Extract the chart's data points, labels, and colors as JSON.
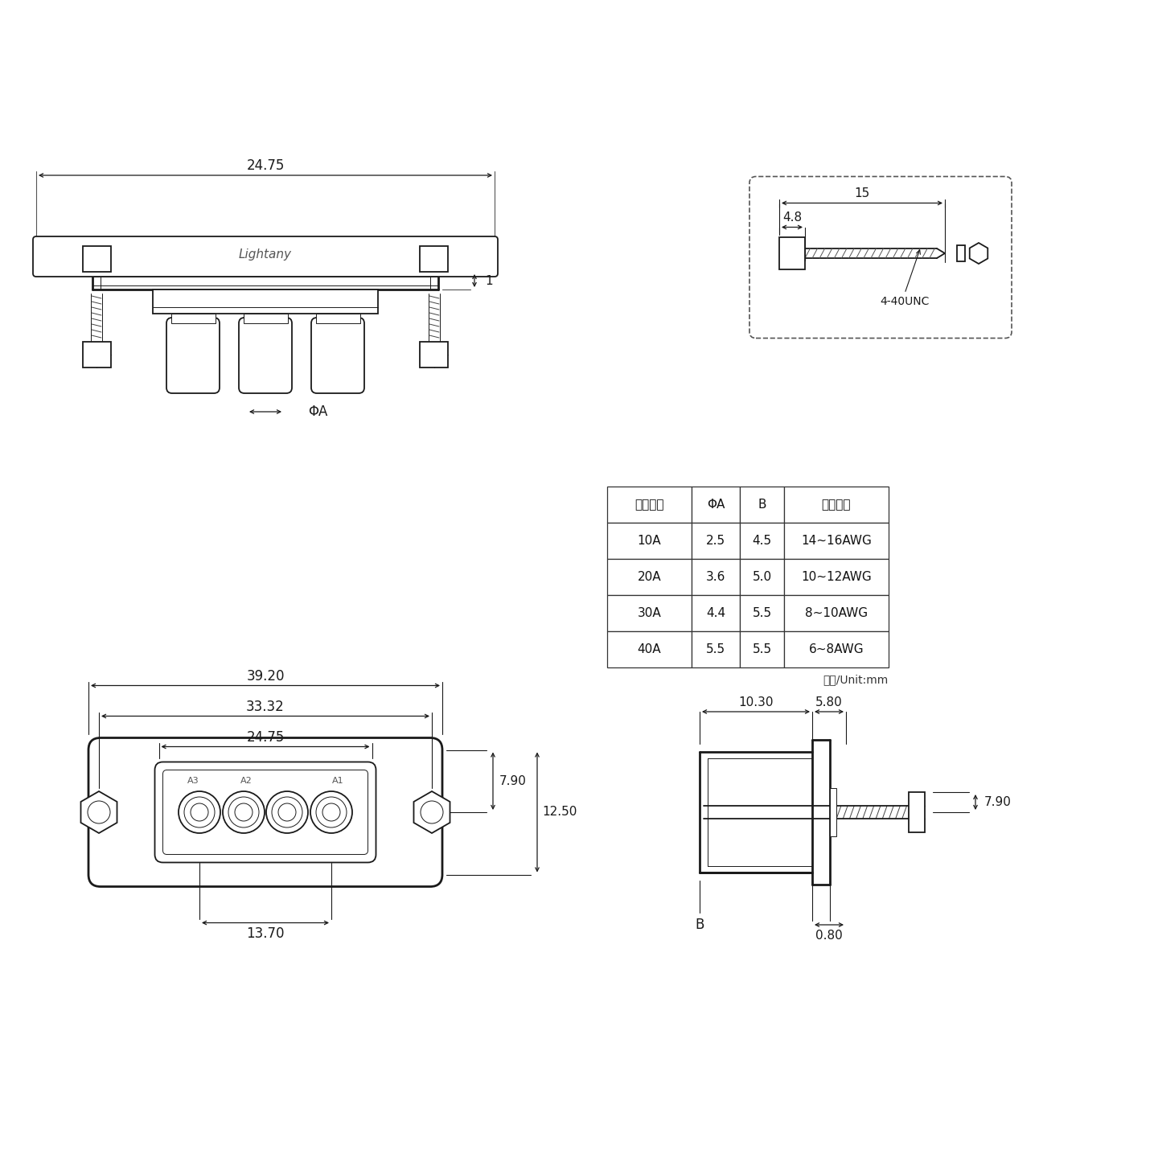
{
  "bg_color": "#ffffff",
  "line_color": "#1a1a1a",
  "table_headers": [
    "额定电流",
    "ΦA",
    "B",
    "线材规格"
  ],
  "table_rows": [
    [
      "10A",
      "2.5",
      "4.5",
      "14~16AWG"
    ],
    [
      "20A",
      "3.6",
      "5.0",
      "10~12AWG"
    ],
    [
      "30A",
      "4.4",
      "5.5",
      "8~10AWG"
    ],
    [
      "40A",
      "5.5",
      "5.5",
      "6~8AWG"
    ]
  ],
  "unit_text": "单位/Unit:mm",
  "screw_label": "4-40UNC",
  "dim_15": "15",
  "dim_4_8": "4.8",
  "dim_top_24_75": "24.75",
  "dim_phiA": "ΦA",
  "dim_39_20": "39.20",
  "dim_33_32": "33.32",
  "dim_24_75": "24.75",
  "dim_7_90": "7.90",
  "dim_12_50": "12.50",
  "dim_13_70": "13.70",
  "dim_side_10_30": "10.30",
  "dim_side_5_80": "5.80",
  "dim_side_7_90": "7.90",
  "dim_side_0_80": "0.80",
  "dim_side_B": "B",
  "dim_1": "1"
}
